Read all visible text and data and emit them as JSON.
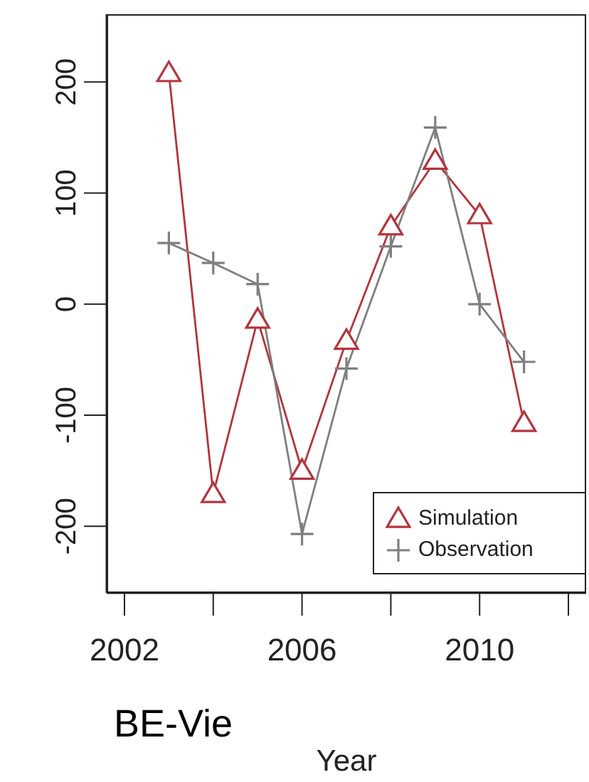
{
  "chart_data": {
    "type": "line",
    "xlabel": "Year",
    "annotations": [
      "BE-Vie"
    ],
    "x": [
      2003,
      2004,
      2005,
      2006,
      2007,
      2008,
      2009,
      2010,
      2011
    ],
    "series": [
      {
        "name": "Simulation",
        "color": "#b5343c",
        "marker": "triangle",
        "values": [
          208,
          -171,
          -14,
          -150,
          -33,
          70,
          129,
          80,
          -107
        ]
      },
      {
        "name": "Observation",
        "color": "#7f7f7f",
        "marker": "cross",
        "values": [
          55,
          37,
          18,
          -207,
          -58,
          52,
          159,
          0,
          -52
        ]
      }
    ],
    "xlim": [
      2001.6,
      2012.4
    ],
    "xticks": [
      2002,
      {
        "value": 2004,
        "label": null
      },
      2006,
      {
        "value": 2008,
        "label": null
      },
      2010,
      {
        "value": 2012,
        "label": null
      }
    ],
    "ylim": [
      -260,
      261
    ],
    "yticks": [
      -200,
      -100,
      0,
      100,
      200
    ],
    "grid": false,
    "legend": "bottom right",
    "line_style": "solid"
  }
}
